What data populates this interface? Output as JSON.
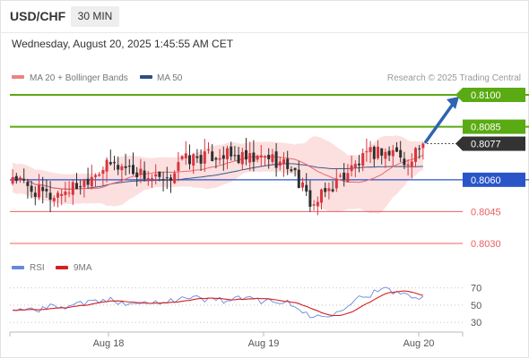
{
  "header": {
    "pair": "USD/CHF",
    "timeframe": "30 MIN"
  },
  "timestamp": "Wednesday, August 20, 2025 1:45:55 AM CET",
  "colors": {
    "resistance": "#5aaa13",
    "support": "#e8605f",
    "pivot": "#2a55c8",
    "current": "#333333",
    "bull": "#d9363f",
    "bear": "#2f2f2f",
    "ma20": "#e86a6a",
    "ma50": "#3c5a8a",
    "rsi": "#6688dd",
    "rsi_ma": "#d42020",
    "band_fill": "#fbd9d9",
    "arrow": "#2e64b0"
  },
  "chart_data": [
    {
      "type": "candlestick",
      "title": "",
      "legend": [
        {
          "label": "MA 20 + Bollinger Bands",
          "color": "#f08080"
        },
        {
          "label": "MA 50",
          "color": "#2c4f86"
        }
      ],
      "watermark": "Research © 2025 Trading Central",
      "x_ticks": [
        "Aug 18",
        "Aug 19",
        "Aug 20"
      ],
      "price_levels": [
        {
          "value": "0.8100",
          "kind": "resistance"
        },
        {
          "value": "0.8085",
          "kind": "resistance"
        },
        {
          "value": "0.8077",
          "kind": "current"
        },
        {
          "value": "0.8060",
          "kind": "pivot"
        },
        {
          "value": "0.8045",
          "kind": "support"
        },
        {
          "value": "0.8030",
          "kind": "support"
        }
      ],
      "ylim": [
        0.8027,
        0.8104
      ],
      "candle_count": 110,
      "close_path": [
        [
          0,
          0.8062
        ],
        [
          4,
          0.8056
        ],
        [
          10,
          0.8052
        ],
        [
          14,
          0.8055
        ],
        [
          18,
          0.8058
        ],
        [
          22,
          0.8064
        ],
        [
          26,
          0.8067
        ],
        [
          30,
          0.8066
        ],
        [
          34,
          0.8063
        ],
        [
          38,
          0.806
        ],
        [
          41,
          0.8058
        ],
        [
          44,
          0.8069
        ],
        [
          48,
          0.807
        ],
        [
          52,
          0.8071
        ],
        [
          56,
          0.8072
        ],
        [
          60,
          0.807
        ],
        [
          64,
          0.8069
        ],
        [
          68,
          0.8071
        ],
        [
          71,
          0.8068
        ],
        [
          74,
          0.8066
        ],
        [
          76,
          0.8059
        ],
        [
          78,
          0.8052
        ],
        [
          80,
          0.8048
        ],
        [
          82,
          0.8052
        ],
        [
          86,
          0.8059
        ],
        [
          89,
          0.8064
        ],
        [
          92,
          0.8068
        ],
        [
          95,
          0.8072
        ],
        [
          98,
          0.8074
        ],
        [
          100,
          0.8072
        ],
        [
          102,
          0.8074
        ],
        [
          104,
          0.8066
        ],
        [
          106,
          0.8072
        ],
        [
          109,
          0.8077
        ]
      ],
      "forecast_arrow": {
        "from": 0.8077,
        "to": 0.81
      }
    },
    {
      "type": "line",
      "title": "",
      "legend": [
        {
          "label": "RSI",
          "color": "#6688dd"
        },
        {
          "label": "9MA",
          "color": "#d42020"
        }
      ],
      "y_ticks": [
        "70",
        "50",
        "30"
      ],
      "ylim": [
        25,
        78
      ],
      "rsi_path": [
        [
          0,
          44
        ],
        [
          6,
          46
        ],
        [
          12,
          48
        ],
        [
          18,
          52
        ],
        [
          24,
          55
        ],
        [
          30,
          54
        ],
        [
          36,
          52
        ],
        [
          42,
          57
        ],
        [
          48,
          58
        ],
        [
          54,
          56
        ],
        [
          60,
          57
        ],
        [
          66,
          56
        ],
        [
          71,
          55
        ],
        [
          75,
          48
        ],
        [
          79,
          38
        ],
        [
          82,
          36
        ],
        [
          86,
          44
        ],
        [
          90,
          54
        ],
        [
          94,
          62
        ],
        [
          98,
          67
        ],
        [
          101,
          66
        ],
        [
          104,
          63
        ],
        [
          106,
          62
        ],
        [
          109,
          60
        ]
      ]
    }
  ]
}
